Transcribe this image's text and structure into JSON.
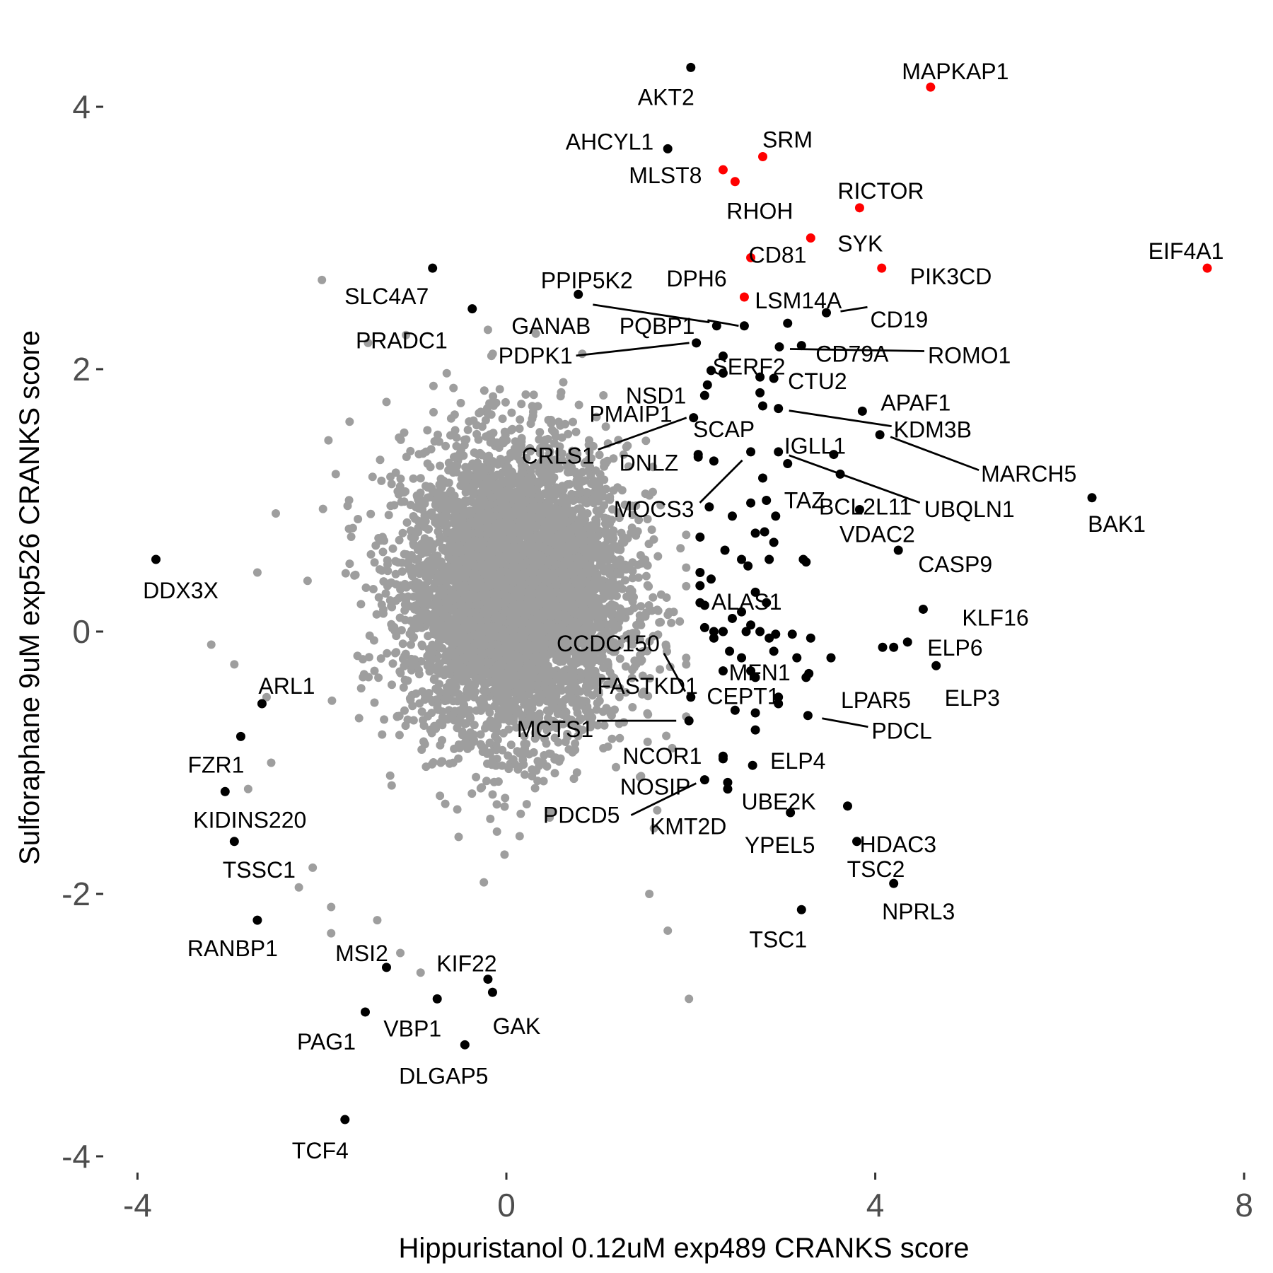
{
  "chart_data": {
    "type": "scatter",
    "xlabel": "Hippuristanol 0.12uM exp489 CRANKS score",
    "ylabel": "Sulforaphane 9uM exp526 CRANKS score",
    "xlim": [
      -4.1,
      8.0
    ],
    "ylim": [
      -4.1,
      4.4
    ],
    "x_ticks": [
      "-4",
      "0",
      "4",
      "8"
    ],
    "y_ticks": [
      "-4",
      "-2",
      "0",
      "2",
      "4"
    ],
    "grid": false,
    "background_series": {
      "color": "#9e9e9e",
      "cloud_center": [
        0.1,
        0.3
      ],
      "cloud_sd": [
        0.6,
        0.55
      ],
      "outliers": [
        [
          -2.0,
          2.68
        ],
        [
          -1.5,
          2.2
        ],
        [
          -1.7,
          1.6
        ],
        [
          -1.3,
          1.75
        ],
        [
          -2.5,
          0.9
        ],
        [
          -1.85,
          1.2
        ],
        [
          -3.2,
          -0.1
        ],
        [
          -2.95,
          -0.25
        ],
        [
          -2.8,
          -1.2
        ],
        [
          -2.55,
          -1.0
        ],
        [
          -2.6,
          -0.5
        ],
        [
          -2.7,
          0.45
        ],
        [
          -2.1,
          -1.8
        ],
        [
          -2.25,
          -1.95
        ],
        [
          -1.9,
          -2.1
        ],
        [
          -1.9,
          -2.3
        ],
        [
          -1.4,
          -2.2
        ],
        [
          -1.15,
          -2.45
        ],
        [
          -0.93,
          -2.6
        ],
        [
          -0.02,
          -1.7
        ],
        [
          1.55,
          -2.0
        ],
        [
          1.98,
          -2.8
        ],
        [
          1.75,
          -2.28
        ],
        [
          -0.2,
          2.3
        ],
        [
          1.6,
          -1.5
        ]
      ]
    },
    "highlight_color": "#ff0000",
    "points": [
      {
        "label": "MAPKAP1",
        "x": 4.6,
        "y": 4.15,
        "highlight": true
      },
      {
        "label": "AKT2",
        "x": 2.0,
        "y": 4.3
      },
      {
        "label": "AHCYL1",
        "x": 1.75,
        "y": 3.68
      },
      {
        "label": "SRM",
        "x": 2.78,
        "y": 3.62,
        "highlight": true
      },
      {
        "label": "MLST8",
        "x": 2.35,
        "y": 3.52,
        "highlight": true
      },
      {
        "label": "RHOH",
        "x": 2.48,
        "y": 3.43,
        "highlight": true
      },
      {
        "label": "RICTOR",
        "x": 3.83,
        "y": 3.23,
        "highlight": true
      },
      {
        "label": "SYK",
        "x": 3.3,
        "y": 3.0,
        "highlight": true
      },
      {
        "label": "CD81",
        "x": 2.65,
        "y": 2.85,
        "highlight": true
      },
      {
        "label": "PIK3CD",
        "x": 4.07,
        "y": 2.77,
        "highlight": true
      },
      {
        "label": "EIF4A1",
        "x": 7.6,
        "y": 2.77,
        "highlight": true
      },
      {
        "label": "LSM14A",
        "x": 2.58,
        "y": 2.55,
        "highlight": true
      },
      {
        "label": "SLC4A7",
        "x": -0.8,
        "y": 2.77
      },
      {
        "label": "PPIP5K2",
        "x": 0.78,
        "y": 2.57
      },
      {
        "label": "DPH6",
        "x": ""
      },
      {
        "label": "PRADC1",
        "x": -0.37,
        "y": 2.46
      },
      {
        "label": "CD19",
        "x": 3.47,
        "y": 2.43
      },
      {
        "label": "GANAB",
        "x": 2.28,
        "y": 2.33
      },
      {
        "label": "PQBP1",
        "x": 2.58,
        "y": 2.33
      },
      {
        "label": "CD79A",
        "x": 3.2,
        "y": 2.18
      },
      {
        "label": "ROMO1",
        "x": 2.96,
        "y": 2.17
      },
      {
        "label": "PDPK1",
        "x": 2.06,
        "y": 2.2
      },
      {
        "label": "SERF2",
        "x": 2.35,
        "y": 2.1
      },
      {
        "label": "NSD1",
        "x": 2.18,
        "y": 1.88
      },
      {
        "label": "CTU2",
        "x": 2.9,
        "y": 1.93
      },
      {
        "label": "APAF1",
        "x": 3.86,
        "y": 1.68
      },
      {
        "label": "KDM3B",
        "x": 2.95,
        "y": 1.7
      },
      {
        "label": "MARCH5",
        "x": 4.05,
        "y": 1.5
      },
      {
        "label": "PMAIP1",
        "x": 2.03,
        "y": 1.63
      },
      {
        "label": "SCAP",
        "x": ""
      },
      {
        "label": "CRLS1",
        "x": 2.03,
        "y": 1.63
      },
      {
        "label": "IGLL1",
        "x": 3.55,
        "y": 1.35
      },
      {
        "label": "DNLZ",
        "x": 2.08,
        "y": 1.33
      },
      {
        "label": "BCL2L11",
        "x": 3.62,
        "y": 1.2
      },
      {
        "label": "UBQLN1",
        "x": 2.95,
        "y": 1.37
      },
      {
        "label": "MOCS3",
        "x": 2.65,
        "y": 1.37
      },
      {
        "label": "TAZ",
        "x": 3.05,
        "y": 1.28
      },
      {
        "label": "BAK1",
        "x": 6.35,
        "y": 1.02
      },
      {
        "label": "VDAC2",
        "x": 3.83,
        "y": 0.93
      },
      {
        "label": "CASP9",
        "x": 4.25,
        "y": 0.62
      },
      {
        "label": "ALAS1",
        "x": 3.22,
        "y": 0.55
      },
      {
        "label": "KLF16",
        "x": 4.52,
        "y": 0.17
      },
      {
        "label": "DDX3X",
        "x": -3.8,
        "y": 0.55
      },
      {
        "label": "CCDC150",
        "x": 2.0,
        "y": -0.5
      },
      {
        "label": "MFN1",
        "x": 2.9,
        "y": -0.15
      },
      {
        "label": "ELP6",
        "x": 4.35,
        "y": -0.08
      },
      {
        "label": "LPAR5",
        "x": 3.52,
        "y": -0.2
      },
      {
        "label": "ELP3",
        "x": 4.66,
        "y": -0.26
      },
      {
        "label": "FASTKD1",
        "x": 2.0,
        "y": -0.5
      },
      {
        "label": "CEPT1",
        "x": 2.48,
        "y": -0.6
      },
      {
        "label": "PDCL",
        "x": 3.27,
        "y": -0.64
      },
      {
        "label": "MCTS1",
        "x": 1.98,
        "y": -0.68
      },
      {
        "label": "ARL1",
        "x": -2.65,
        "y": -0.55
      },
      {
        "label": "NCOR1",
        "x": 2.35,
        "y": -0.95
      },
      {
        "label": "ELP4",
        "x": 2.67,
        "y": -1.02
      },
      {
        "label": "FZR1",
        "x": -2.88,
        "y": -0.8
      },
      {
        "label": "NOSIP",
        "x": 2.15,
        "y": -1.13
      },
      {
        "label": "UBE2K",
        "x": 3.7,
        "y": -1.33
      },
      {
        "label": "KIDINS220",
        "x": -3.05,
        "y": -1.22
      },
      {
        "label": "HDAC3",
        "x": 3.08,
        "y": -1.38
      },
      {
        "label": "YPEL5",
        "x": 3.08,
        "y": -1.38
      },
      {
        "label": "PDCD5",
        "x": 2.15,
        "y": -1.13
      },
      {
        "label": "KMT2D",
        "x": 2.4,
        "y": -1.15
      },
      {
        "label": "TSSC1",
        "x": -2.95,
        "y": -1.6
      },
      {
        "label": "TSC2",
        "x": 3.8,
        "y": -1.6
      },
      {
        "label": "NPRL3",
        "x": 4.2,
        "y": -1.92
      },
      {
        "label": "TSC1",
        "x": 3.2,
        "y": -2.12
      },
      {
        "label": "RANBP1",
        "x": -2.7,
        "y": -2.2
      },
      {
        "label": "MSI2",
        "x": -1.3,
        "y": -2.56
      },
      {
        "label": "KIF22",
        "x": -0.2,
        "y": -2.65
      },
      {
        "label": "GAK",
        "x": -0.15,
        "y": -2.75
      },
      {
        "label": "PAG1",
        "x": -1.53,
        "y": -2.9
      },
      {
        "label": "VBP1",
        "x": -0.75,
        "y": -2.8
      },
      {
        "label": "DLGAP5",
        "x": -0.45,
        "y": -3.15
      },
      {
        "label": "TCF4",
        "x": -1.75,
        "y": -3.72
      }
    ],
    "unlabeled_black_points": [
      [
        3.05,
        2.35
      ],
      [
        2.22,
        1.99
      ],
      [
        2.75,
        1.94
      ],
      [
        2.75,
        1.82
      ],
      [
        2.78,
        1.72
      ],
      [
        2.15,
        1.8
      ],
      [
        2.35,
        1.97
      ],
      [
        2.08,
        1.35
      ],
      [
        2.25,
        1.3
      ],
      [
        2.78,
        1.17
      ],
      [
        2.2,
        0.95
      ],
      [
        2.45,
        0.88
      ],
      [
        2.65,
        0.98
      ],
      [
        2.82,
        1.0
      ],
      [
        2.92,
        0.88
      ],
      [
        2.7,
        0.75
      ],
      [
        2.8,
        0.76
      ],
      [
        2.9,
        0.68
      ],
      [
        2.1,
        0.72
      ],
      [
        2.37,
        0.62
      ],
      [
        2.55,
        0.55
      ],
      [
        2.62,
        0.5
      ],
      [
        2.85,
        0.55
      ],
      [
        3.25,
        0.53
      ],
      [
        2.1,
        0.45
      ],
      [
        2.22,
        0.4
      ],
      [
        2.1,
        0.35
      ],
      [
        2.1,
        0.22
      ],
      [
        2.7,
        0.3
      ],
      [
        2.82,
        0.22
      ],
      [
        2.15,
        0.2
      ],
      [
        2.55,
        0.15
      ],
      [
        2.65,
        0.05
      ],
      [
        2.45,
        0.1
      ],
      [
        2.35,
        0.0
      ],
      [
        2.25,
        -0.05
      ],
      [
        2.15,
        0.03
      ],
      [
        2.25,
        0.0
      ],
      [
        2.35,
        0.0
      ],
      [
        2.6,
        0.0
      ],
      [
        2.75,
        0.0
      ],
      [
        2.85,
        -0.05
      ],
      [
        2.92,
        -0.02
      ],
      [
        3.1,
        -0.02
      ],
      [
        3.3,
        -0.05
      ],
      [
        3.15,
        -0.2
      ],
      [
        3.28,
        -0.32
      ],
      [
        3.25,
        -0.35
      ],
      [
        2.55,
        -0.2
      ],
      [
        2.42,
        -0.15
      ],
      [
        2.35,
        -0.3
      ],
      [
        2.65,
        -0.3
      ],
      [
        2.7,
        -0.35
      ],
      [
        2.95,
        -0.5
      ],
      [
        2.95,
        -0.55
      ],
      [
        2.7,
        -0.62
      ],
      [
        2.7,
        -0.75
      ],
      [
        2.35,
        -0.97
      ],
      [
        4.2,
        -0.12
      ],
      [
        4.08,
        -0.12
      ],
      [
        2.4,
        -1.2
      ]
    ]
  }
}
